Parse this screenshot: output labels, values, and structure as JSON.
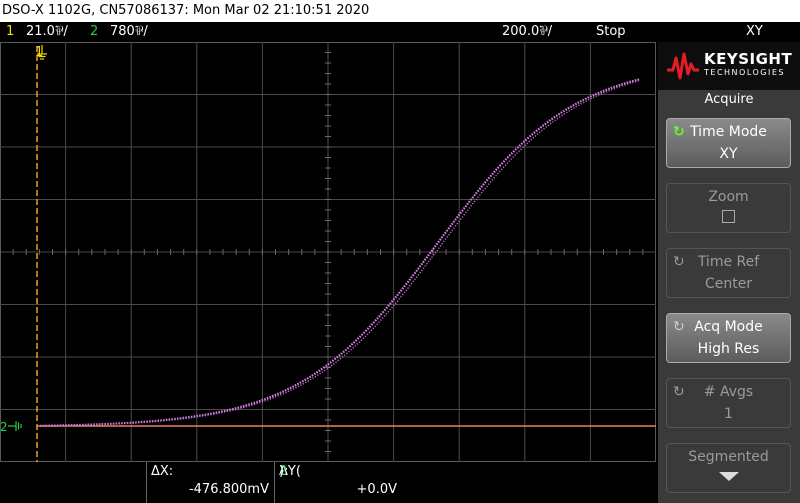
{
  "titlebar": {
    "text": "DSO-X 1102G, CN57086137: Mon Mar 02 21:10:51 2020"
  },
  "status": {
    "ch1_num": "1",
    "ch1_scale": "21.0⅌/",
    "ch2_num": "2",
    "ch2_scale": "780⅌/",
    "timebase": "200.0⅌/",
    "run_state": "Stop",
    "mode": "XY"
  },
  "markers": {
    "ch1_marker": "1",
    "ch2_marker": "2"
  },
  "panel": {
    "brand": "KEYSIGHT",
    "brand_sub": "TECHNOLOGIES",
    "menu_title": "Acquire",
    "softkeys": [
      {
        "label": "Time Mode",
        "value": "XY",
        "icon": "rotate-knob-icon"
      },
      {
        "label": "Zoom",
        "value": "",
        "icon": "checkbox-icon"
      },
      {
        "label": "Time Ref",
        "value": "Center",
        "icon": "rotate-knob-icon"
      },
      {
        "label": "Acq Mode",
        "value": "High Res",
        "icon": "rotate-knob-icon"
      },
      {
        "label": "# Avgs",
        "value": "1",
        "icon": "rotate-knob-icon"
      },
      {
        "label": "Segmented",
        "value": "",
        "icon": "arrow-down-icon"
      }
    ]
  },
  "measurements": {
    "dx_label": "ΔX:",
    "dx_value": "-476.800mV",
    "dy_label_prefix": "ΔY(",
    "dy_channel": "2",
    "dy_label_suffix": "):",
    "dy_value": "+0.0V"
  },
  "trace": {
    "color": "#d080e0",
    "shape": "sigmoid"
  },
  "colors": {
    "ch1": "#f0e000",
    "ch2": "#22cc44",
    "cursor_h": "#f08060",
    "cursor_v": "#f0a020",
    "grid": "#5a5a5a"
  }
}
